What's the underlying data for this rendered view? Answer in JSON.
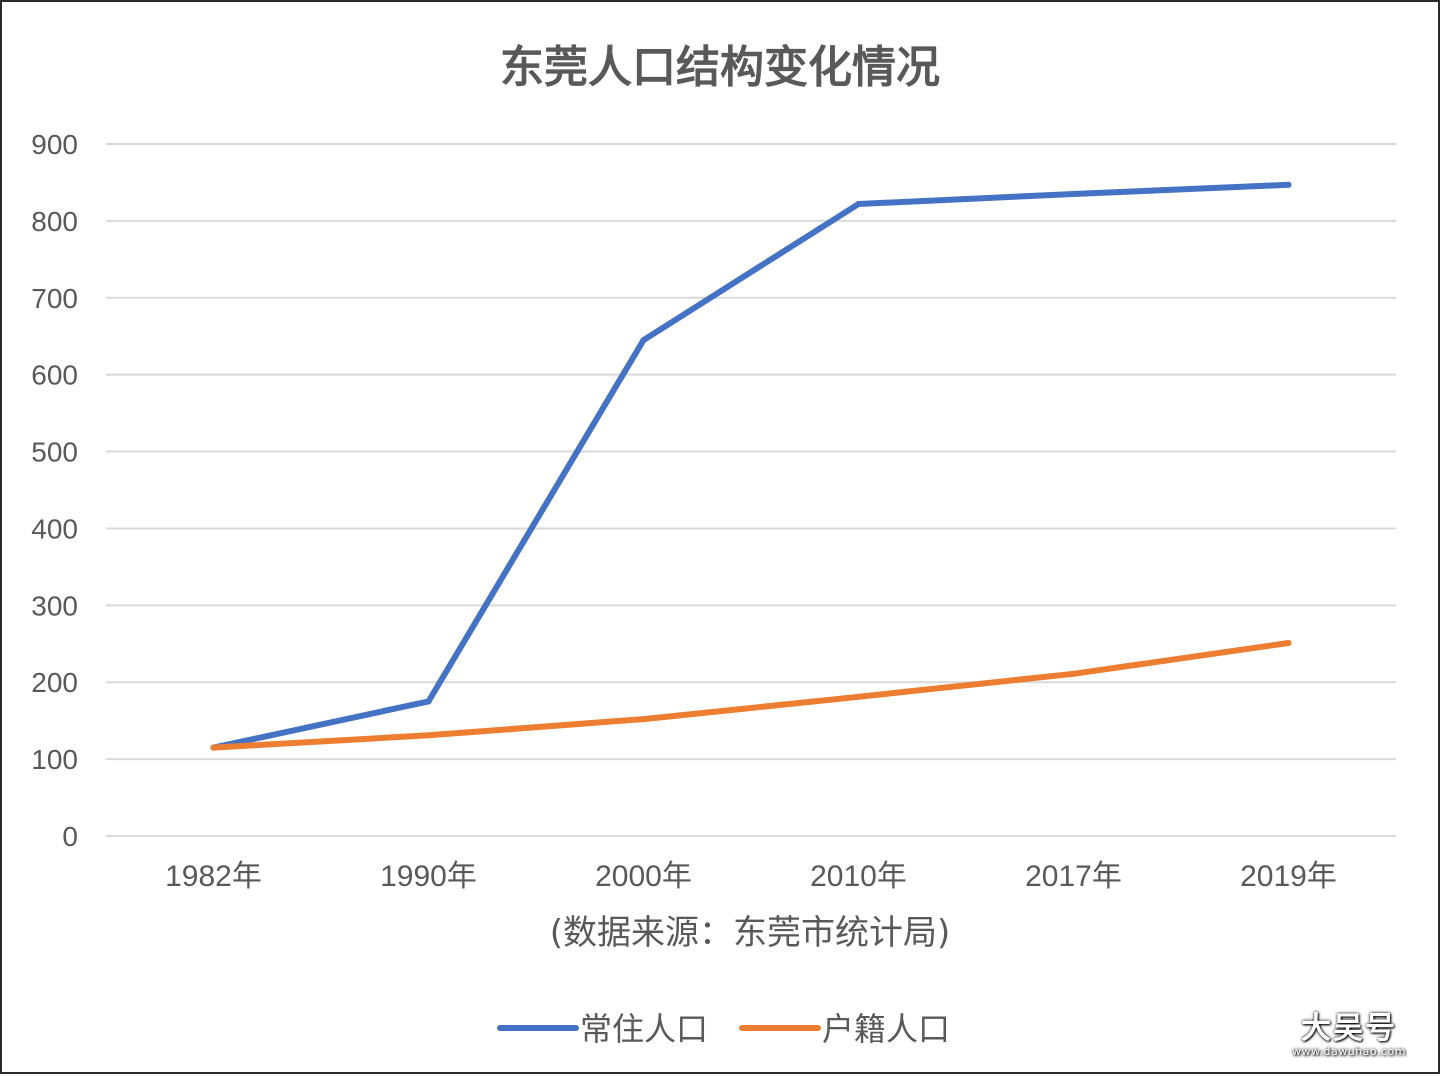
{
  "chart_data": {
    "type": "line",
    "title": "东莞人口结构变化情况",
    "xlabel": "(数据来源：东莞市统计局)",
    "ylabel": "",
    "categories": [
      "1982年",
      "1990年",
      "2000年",
      "2010年",
      "2017年",
      "2019年"
    ],
    "ylim": [
      0,
      900
    ],
    "yticks": [
      0,
      100,
      200,
      300,
      400,
      500,
      600,
      700,
      800,
      900
    ],
    "grid": true,
    "legend": "bottom",
    "series": [
      {
        "name": "常住人口",
        "color": "#4472C4",
        "values": [
          115,
          175,
          645,
          822,
          835,
          847
        ]
      },
      {
        "name": "户籍人口",
        "color": "#ED7D31",
        "values": [
          115,
          131,
          152,
          181,
          211,
          251
        ]
      }
    ]
  },
  "watermark": {
    "main": "大吴号",
    "sub": "www.dawuhao.com"
  }
}
